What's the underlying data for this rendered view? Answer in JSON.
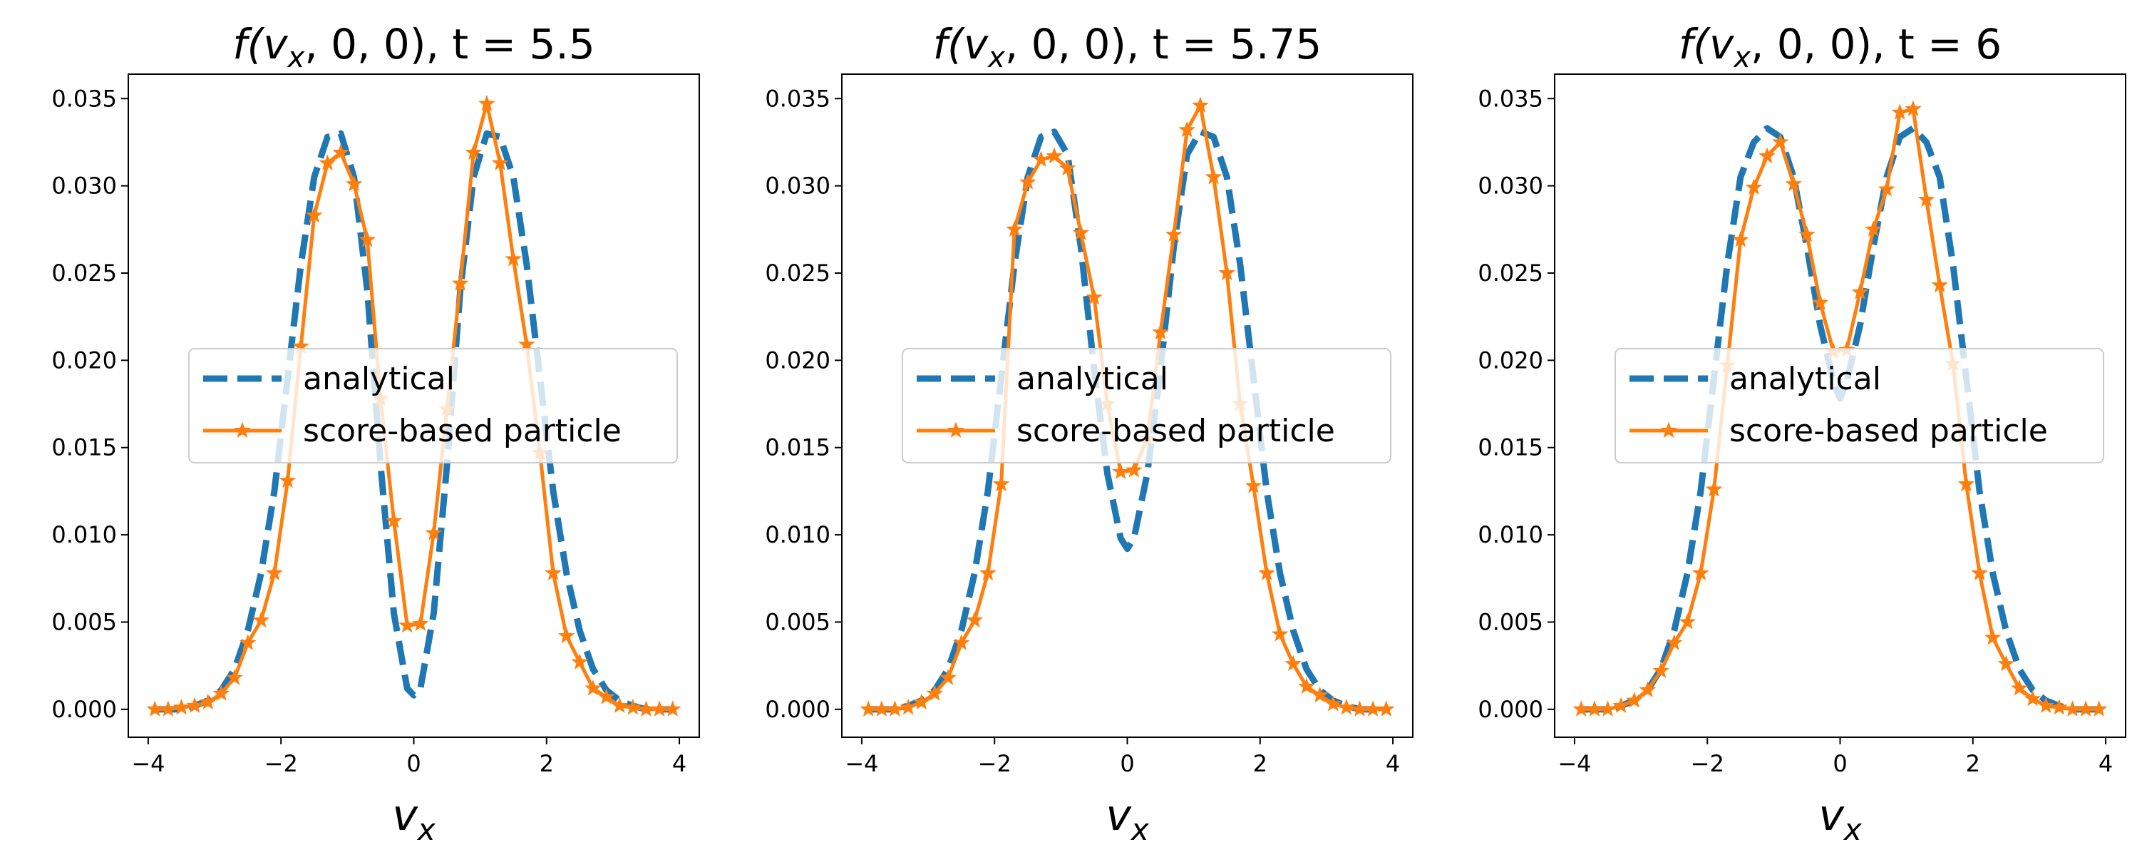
{
  "chart_data": [
    {
      "type": "line",
      "title": "f(v_x, 0, 0), t = 5.5",
      "title_parts": {
        "prefix": "f(v",
        "sub": "x",
        "suffix": ", 0, 0), t = 5.5"
      },
      "xlabel": "v_x",
      "xlabel_parts": {
        "main": "v",
        "sub": "x"
      },
      "xlim": [
        -4.3,
        4.3
      ],
      "ylim": [
        -0.0016,
        0.0364
      ],
      "xticks": [
        -4,
        -2,
        0,
        2,
        4
      ],
      "xtick_labels": [
        "−4",
        "−2",
        "0",
        "2",
        "4"
      ],
      "yticks": [
        0.0,
        0.005,
        0.01,
        0.015,
        0.02,
        0.025,
        0.03,
        0.035
      ],
      "ytick_labels": [
        "0.000",
        "0.005",
        "0.010",
        "0.015",
        "0.020",
        "0.025",
        "0.030",
        "0.035"
      ],
      "legend": {
        "position": "center",
        "entries": [
          "analytical",
          "score-based particle"
        ]
      },
      "series": [
        {
          "name": "analytical",
          "style": "dashed",
          "color": "#1f77b4",
          "x": [
            -3.9,
            -3.7,
            -3.5,
            -3.3,
            -3.1,
            -2.9,
            -2.7,
            -2.5,
            -2.3,
            -2.1,
            -1.9,
            -1.7,
            -1.5,
            -1.3,
            -1.1,
            -0.9,
            -0.7,
            -0.5,
            -0.3,
            -0.1,
            0.0,
            0.1,
            0.3,
            0.5,
            0.7,
            0.9,
            1.1,
            1.3,
            1.5,
            1.7,
            1.9,
            2.1,
            2.3,
            2.5,
            2.7,
            2.9,
            3.1,
            3.3,
            3.5,
            3.7,
            3.9
          ],
          "y": [
            0.0,
            0.0,
            0.0,
            0.0002,
            0.0005,
            0.0011,
            0.0023,
            0.0045,
            0.0078,
            0.0125,
            0.019,
            0.0255,
            0.0305,
            0.0328,
            0.033,
            0.0305,
            0.024,
            0.014,
            0.0055,
            0.0012,
            0.0008,
            0.0012,
            0.0055,
            0.014,
            0.024,
            0.0305,
            0.033,
            0.0328,
            0.0305,
            0.0255,
            0.019,
            0.0125,
            0.0078,
            0.0045,
            0.0023,
            0.0011,
            0.0005,
            0.0002,
            0.0,
            0.0,
            0.0
          ]
        },
        {
          "name": "score-based particle",
          "style": "solid",
          "marker": "star",
          "color": "#ff7f0e",
          "x": [
            -3.9,
            -3.7,
            -3.5,
            -3.3,
            -3.1,
            -2.9,
            -2.7,
            -2.5,
            -2.3,
            -2.1,
            -1.9,
            -1.7,
            -1.5,
            -1.3,
            -1.1,
            -0.9,
            -0.7,
            -0.5,
            -0.3,
            -0.1,
            0.1,
            0.3,
            0.5,
            0.7,
            0.9,
            1.1,
            1.3,
            1.5,
            1.7,
            1.9,
            2.1,
            2.3,
            2.5,
            2.7,
            2.9,
            3.1,
            3.3,
            3.5,
            3.7,
            3.9
          ],
          "y": [
            0.0,
            0.0,
            0.0001,
            0.0002,
            0.0004,
            0.0009,
            0.0018,
            0.0038,
            0.0051,
            0.0078,
            0.0131,
            0.0208,
            0.0283,
            0.0313,
            0.0319,
            0.0301,
            0.0269,
            0.0178,
            0.0108,
            0.0048,
            0.0049,
            0.0101,
            0.0172,
            0.0244,
            0.0319,
            0.0347,
            0.0313,
            0.0258,
            0.0209,
            0.0147,
            0.0078,
            0.0042,
            0.0027,
            0.0012,
            0.0007,
            0.0002,
            0.0001,
            0.0,
            0.0,
            0.0
          ]
        }
      ]
    },
    {
      "type": "line",
      "title": "f(v_x, 0, 0), t = 5.75",
      "title_parts": {
        "prefix": "f(v",
        "sub": "x",
        "suffix": ", 0, 0), t = 5.75"
      },
      "xlabel": "v_x",
      "xlabel_parts": {
        "main": "v",
        "sub": "x"
      },
      "xlim": [
        -4.3,
        4.3
      ],
      "ylim": [
        -0.0016,
        0.0364
      ],
      "xticks": [
        -4,
        -2,
        0,
        2,
        4
      ],
      "xtick_labels": [
        "−4",
        "−2",
        "0",
        "2",
        "4"
      ],
      "yticks": [
        0.0,
        0.005,
        0.01,
        0.015,
        0.02,
        0.025,
        0.03,
        0.035
      ],
      "ytick_labels": [
        "0.000",
        "0.005",
        "0.010",
        "0.015",
        "0.020",
        "0.025",
        "0.030",
        "0.035"
      ],
      "legend": {
        "position": "center",
        "entries": [
          "analytical",
          "score-based particle"
        ]
      },
      "series": [
        {
          "name": "analytical",
          "style": "dashed",
          "color": "#1f77b4",
          "x": [
            -3.9,
            -3.7,
            -3.5,
            -3.3,
            -3.1,
            -2.9,
            -2.7,
            -2.5,
            -2.3,
            -2.1,
            -1.9,
            -1.7,
            -1.5,
            -1.3,
            -1.1,
            -0.9,
            -0.7,
            -0.5,
            -0.3,
            -0.1,
            0.0,
            0.1,
            0.3,
            0.5,
            0.7,
            0.9,
            1.1,
            1.3,
            1.5,
            1.7,
            1.9,
            2.1,
            2.3,
            2.5,
            2.7,
            2.9,
            3.1,
            3.3,
            3.5,
            3.7,
            3.9
          ],
          "y": [
            0.0,
            0.0,
            0.0,
            0.0002,
            0.0005,
            0.0011,
            0.0023,
            0.0045,
            0.0078,
            0.0125,
            0.019,
            0.0255,
            0.0305,
            0.0328,
            0.0331,
            0.0318,
            0.0265,
            0.0195,
            0.0135,
            0.0098,
            0.0092,
            0.0098,
            0.0135,
            0.0195,
            0.0265,
            0.0318,
            0.0331,
            0.0328,
            0.0305,
            0.0255,
            0.019,
            0.0125,
            0.0078,
            0.0045,
            0.0023,
            0.0011,
            0.0005,
            0.0002,
            0.0,
            0.0,
            0.0
          ]
        },
        {
          "name": "score-based particle",
          "style": "solid",
          "marker": "star",
          "color": "#ff7f0e",
          "x": [
            -3.9,
            -3.7,
            -3.5,
            -3.3,
            -3.1,
            -2.9,
            -2.7,
            -2.5,
            -2.3,
            -2.1,
            -1.9,
            -1.7,
            -1.5,
            -1.3,
            -1.1,
            -0.9,
            -0.7,
            -0.5,
            -0.3,
            -0.1,
            0.1,
            0.3,
            0.5,
            0.7,
            0.9,
            1.1,
            1.3,
            1.5,
            1.7,
            1.9,
            2.1,
            2.3,
            2.5,
            2.7,
            2.9,
            3.1,
            3.3,
            3.5,
            3.7,
            3.9
          ],
          "y": [
            0.0,
            0.0,
            0.0,
            0.0001,
            0.0004,
            0.0009,
            0.0018,
            0.0038,
            0.0051,
            0.0078,
            0.0129,
            0.0275,
            0.0302,
            0.0315,
            0.0317,
            0.031,
            0.0273,
            0.0236,
            0.0175,
            0.0136,
            0.0137,
            0.0155,
            0.0216,
            0.0272,
            0.0332,
            0.0346,
            0.0305,
            0.025,
            0.0175,
            0.0128,
            0.0078,
            0.0043,
            0.0026,
            0.0013,
            0.0008,
            0.0003,
            0.0001,
            0.0,
            0.0,
            0.0
          ]
        }
      ]
    },
    {
      "type": "line",
      "title": "f(v_x, 0, 0), t = 6",
      "title_parts": {
        "prefix": "f(v",
        "sub": "x",
        "suffix": ", 0, 0), t = 6"
      },
      "xlabel": "v_x",
      "xlabel_parts": {
        "main": "v",
        "sub": "x"
      },
      "xlim": [
        -4.3,
        4.3
      ],
      "ylim": [
        -0.0016,
        0.0364
      ],
      "xticks": [
        -4,
        -2,
        0,
        2,
        4
      ],
      "xtick_labels": [
        "−4",
        "−2",
        "0",
        "2",
        "4"
      ],
      "yticks": [
        0.0,
        0.005,
        0.01,
        0.015,
        0.02,
        0.025,
        0.03,
        0.035
      ],
      "ytick_labels": [
        "0.000",
        "0.005",
        "0.010",
        "0.015",
        "0.020",
        "0.025",
        "0.030",
        "0.035"
      ],
      "legend": {
        "position": "center",
        "entries": [
          "analytical",
          "score-based particle"
        ]
      },
      "series": [
        {
          "name": "analytical",
          "style": "dashed",
          "color": "#1f77b4",
          "x": [
            -3.9,
            -3.7,
            -3.5,
            -3.3,
            -3.1,
            -2.9,
            -2.7,
            -2.5,
            -2.3,
            -2.1,
            -1.9,
            -1.7,
            -1.5,
            -1.3,
            -1.1,
            -0.9,
            -0.7,
            -0.5,
            -0.3,
            -0.1,
            0.0,
            0.1,
            0.3,
            0.5,
            0.7,
            0.9,
            1.1,
            1.3,
            1.5,
            1.7,
            1.9,
            2.1,
            2.3,
            2.5,
            2.7,
            2.9,
            3.1,
            3.3,
            3.5,
            3.7,
            3.9
          ],
          "y": [
            0.0,
            0.0,
            0.0,
            0.0002,
            0.0005,
            0.0011,
            0.0023,
            0.0045,
            0.0078,
            0.0125,
            0.019,
            0.0255,
            0.0305,
            0.0325,
            0.0333,
            0.0328,
            0.0305,
            0.0265,
            0.022,
            0.0188,
            0.0178,
            0.0188,
            0.022,
            0.0265,
            0.0305,
            0.0328,
            0.0333,
            0.0325,
            0.0305,
            0.0255,
            0.019,
            0.0125,
            0.0078,
            0.0045,
            0.0023,
            0.0011,
            0.0005,
            0.0002,
            0.0,
            0.0,
            0.0
          ]
        },
        {
          "name": "score-based particle",
          "style": "solid",
          "marker": "star",
          "color": "#ff7f0e",
          "x": [
            -3.9,
            -3.7,
            -3.5,
            -3.3,
            -3.1,
            -2.9,
            -2.7,
            -2.5,
            -2.3,
            -2.1,
            -1.9,
            -1.7,
            -1.5,
            -1.3,
            -1.1,
            -0.9,
            -0.7,
            -0.5,
            -0.3,
            -0.1,
            0.1,
            0.3,
            0.5,
            0.7,
            0.9,
            1.1,
            1.3,
            1.5,
            1.7,
            1.9,
            2.1,
            2.3,
            2.5,
            2.7,
            2.9,
            3.1,
            3.3,
            3.5,
            3.7,
            3.9
          ],
          "y": [
            0.0,
            0.0,
            0.0,
            0.0002,
            0.0005,
            0.0011,
            0.0022,
            0.0038,
            0.005,
            0.0078,
            0.0126,
            0.0197,
            0.0269,
            0.0299,
            0.0317,
            0.0325,
            0.0301,
            0.0272,
            0.0233,
            0.0205,
            0.0206,
            0.0239,
            0.0275,
            0.0298,
            0.0342,
            0.0344,
            0.0292,
            0.0243,
            0.0198,
            0.0129,
            0.0078,
            0.0041,
            0.0026,
            0.0012,
            0.0006,
            0.0002,
            0.0001,
            0.0,
            0.0,
            0.0
          ]
        }
      ]
    }
  ]
}
